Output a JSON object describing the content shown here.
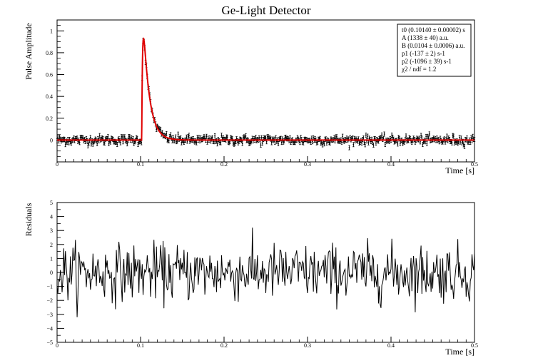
{
  "chart_data": [
    {
      "type": "scatter",
      "title": "Ge-Light Detector",
      "xlabel": "Time [s]",
      "ylabel": "Pulse Amplitude",
      "xlim": [
        0,
        0.5
      ],
      "ylim": [
        -0.2,
        1.1
      ],
      "x_ticks": [
        "0",
        "0.1",
        "0.2",
        "0.3",
        "0.4",
        "0.5"
      ],
      "y_ticks": [
        "0",
        "0.2",
        "0.4",
        "0.6",
        "0.8",
        "1"
      ],
      "grid": false,
      "series": [
        {
          "kind": "data-with-errors",
          "sampling": {
            "x_start": 0.0,
            "x_step": 0.001,
            "count": 501
          },
          "baseline": 0.0,
          "noise_sigma": 0.02,
          "error_bar": 0.02,
          "color": "#000000"
        },
        {
          "kind": "fit",
          "t0": 0.1014,
          "rise_rate": 1096,
          "decay_rate": 137,
          "peak": 0.93,
          "color": "#e00000"
        }
      ],
      "stats_box": {
        "lines": [
          "t0 (0.10140 ± 0.00002) s",
          "A (1338 ± 40) a.u.",
          "B (0.0104 ± 0.0006) a.u.",
          "p1 (-137 ± 2) s-1",
          "p2 (-1096 ± 39) s-1",
          "χ2 / ndf = 1.2"
        ],
        "placement": "top-right"
      }
    },
    {
      "type": "line",
      "title": "",
      "xlabel": "Time [s]",
      "ylabel": "Residuals",
      "xlim": [
        0,
        0.5
      ],
      "ylim": [
        -5,
        5
      ],
      "x_ticks": [
        "0",
        "0.1",
        "0.2",
        "0.3",
        "0.4",
        "0.5"
      ],
      "y_ticks": [
        "−5",
        "−4",
        "−3",
        "−2",
        "−1",
        "0",
        "1",
        "2",
        "3",
        "4",
        "5"
      ],
      "grid": false,
      "series": [
        {
          "kind": "residual-line",
          "sampling": {
            "x_start": 0.0,
            "x_step": 0.001,
            "count": 501
          },
          "sigma": 1.0,
          "color": "#000000"
        }
      ]
    }
  ]
}
